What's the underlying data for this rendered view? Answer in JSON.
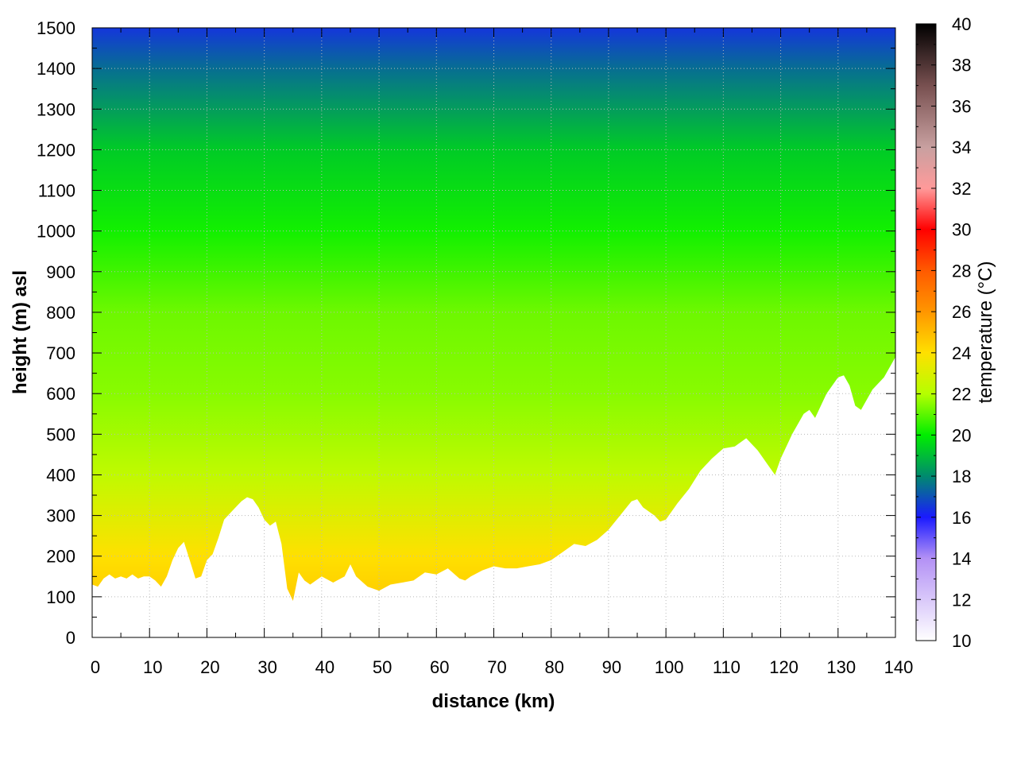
{
  "chart_data": {
    "type": "heatmap",
    "title": "",
    "xlabel": "distance (km)",
    "ylabel": "height (m) asl",
    "colorbar_label": "temperature (°C)",
    "xlim": [
      0,
      140
    ],
    "ylim": [
      0,
      1500
    ],
    "clim": [
      10,
      40
    ],
    "x_ticks": [
      0,
      10,
      20,
      30,
      40,
      50,
      60,
      70,
      80,
      90,
      100,
      110,
      120,
      130,
      140
    ],
    "y_ticks": [
      0,
      100,
      200,
      300,
      400,
      500,
      600,
      700,
      800,
      900,
      1000,
      1100,
      1200,
      1300,
      1400,
      1500
    ],
    "colorbar_ticks": [
      10,
      12,
      14,
      16,
      18,
      20,
      22,
      24,
      26,
      28,
      30,
      32,
      34,
      36,
      38,
      40
    ],
    "grid": true,
    "colormap": [
      {
        "t": 10,
        "color": "#ffffff"
      },
      {
        "t": 14,
        "color": "#b391f5"
      },
      {
        "t": 16,
        "color": "#1a1aff"
      },
      {
        "t": 18,
        "color": "#008a6e"
      },
      {
        "t": 20,
        "color": "#00ee00"
      },
      {
        "t": 22,
        "color": "#b5ff00"
      },
      {
        "t": 24,
        "color": "#ffe000"
      },
      {
        "t": 26,
        "color": "#ff9600"
      },
      {
        "t": 28,
        "color": "#ff5a00"
      },
      {
        "t": 30,
        "color": "#ff0000"
      },
      {
        "t": 32,
        "color": "#ff9a9a"
      },
      {
        "t": 34,
        "color": "#c8a0a0"
      },
      {
        "t": 37,
        "color": "#785050"
      },
      {
        "t": 40,
        "color": "#000000"
      }
    ],
    "terrain_height": {
      "x": [
        0,
        1,
        2,
        3,
        4,
        5,
        6,
        7,
        8,
        9,
        10,
        11,
        12,
        13,
        14,
        15,
        16,
        17,
        18,
        19,
        20,
        21,
        22,
        23,
        24,
        25,
        26,
        27,
        28,
        29,
        30,
        31,
        32,
        33,
        34,
        35,
        36,
        37,
        38,
        39,
        40,
        42,
        44,
        45,
        46,
        48,
        50,
        52,
        54,
        56,
        58,
        60,
        62,
        64,
        65,
        66,
        68,
        70,
        72,
        74,
        76,
        78,
        80,
        82,
        84,
        86,
        88,
        90,
        92,
        94,
        95,
        96,
        98,
        99,
        100,
        102,
        104,
        106,
        108,
        110,
        112,
        114,
        116,
        118,
        119,
        120,
        122,
        124,
        125,
        126,
        128,
        130,
        131,
        132,
        133,
        134,
        136,
        138,
        140
      ],
      "y": [
        130,
        125,
        145,
        155,
        145,
        150,
        145,
        155,
        145,
        150,
        150,
        140,
        125,
        150,
        190,
        220,
        235,
        190,
        145,
        150,
        190,
        205,
        245,
        290,
        305,
        320,
        335,
        345,
        340,
        320,
        290,
        275,
        285,
        230,
        120,
        90,
        160,
        140,
        130,
        140,
        150,
        135,
        150,
        180,
        150,
        125,
        115,
        130,
        135,
        140,
        160,
        155,
        170,
        145,
        140,
        150,
        165,
        175,
        170,
        170,
        175,
        180,
        190,
        210,
        230,
        225,
        240,
        265,
        300,
        335,
        340,
        320,
        300,
        285,
        290,
        330,
        365,
        410,
        440,
        465,
        470,
        490,
        460,
        420,
        400,
        440,
        500,
        550,
        560,
        540,
        600,
        640,
        645,
        620,
        570,
        560,
        610,
        640,
        690
      ]
    },
    "temperature_profile": {
      "height_m": [
        0,
        200,
        400,
        600,
        800,
        1000,
        1200,
        1400,
        1500
      ],
      "temperature_c": [
        25,
        24,
        22.3,
        21.5,
        21.2,
        20.2,
        19.3,
        17.5,
        16.5
      ]
    }
  }
}
